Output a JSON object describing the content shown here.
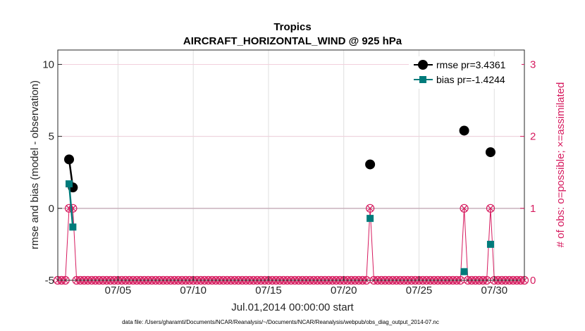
{
  "chart_data": {
    "type": "line",
    "title": "Tropics",
    "subtitle": "AIRCRAFT_HORIZONTAL_WIND @ 925 hPa",
    "xlabel": "Jul.01,2014 00:00:00 start",
    "ylabel": "rmse and bias (model - observation)",
    "ylabel_right": "# of obs: o=possible; ×=assimilated",
    "footer": "data file: /Users/gharamti/Documents/NCAR/Reanalysis/~/Documents/NCAR/Reanalysis/webpub/obs_diag_output_2014-07.nc",
    "xlim": [
      0.5,
      31.5
    ],
    "ylim": [
      -5,
      11
    ],
    "ylim_right": [
      0,
      3.2
    ],
    "x_ticks": [
      {
        "value": 4.5,
        "label": "07/05"
      },
      {
        "value": 9.5,
        "label": "07/10"
      },
      {
        "value": 14.5,
        "label": "07/15"
      },
      {
        "value": 19.5,
        "label": "07/20"
      },
      {
        "value": 24.5,
        "label": "07/25"
      },
      {
        "value": 29.5,
        "label": "07/30"
      }
    ],
    "y_ticks": [
      {
        "value": -5,
        "label": "-5"
      },
      {
        "value": 0,
        "label": "0"
      },
      {
        "value": 5,
        "label": "5"
      },
      {
        "value": 10,
        "label": "10"
      }
    ],
    "y_ticks_right": [
      {
        "value": 0,
        "label": "0"
      },
      {
        "value": 1,
        "label": "1"
      },
      {
        "value": 2,
        "label": "2"
      },
      {
        "value": 3,
        "label": "3"
      }
    ],
    "grid": true,
    "legend_position": "top-right",
    "series": [
      {
        "name": "rmse pr=3.4361",
        "color": "#000000",
        "marker": "circle",
        "points": [
          [
            1.25,
            3.4
          ],
          [
            1.5,
            1.45
          ],
          [
            21.25,
            3.05
          ],
          [
            27.5,
            5.4
          ],
          [
            29.25,
            3.9
          ]
        ],
        "line_segments": [
          [
            [
              1.25,
              3.4
            ],
            [
              1.5,
              1.45
            ]
          ]
        ]
      },
      {
        "name": "bias pr=-1.4244",
        "color": "#007b7b",
        "marker": "square",
        "points": [
          [
            1.25,
            1.7
          ],
          [
            1.5,
            -1.3
          ],
          [
            21.25,
            -0.7
          ],
          [
            27.5,
            -4.4
          ],
          [
            29.25,
            -2.5
          ]
        ],
        "line_segments": [
          [
            [
              1.25,
              1.7
            ],
            [
              1.5,
              -1.3
            ]
          ]
        ]
      }
    ],
    "obs_count": {
      "color": "#d61a5e",
      "step": 0.25,
      "x_start": 0.5,
      "x_end": 31.5,
      "one_values_at": [
        1.25,
        1.5,
        21.25,
        27.5,
        29.25
      ]
    }
  }
}
